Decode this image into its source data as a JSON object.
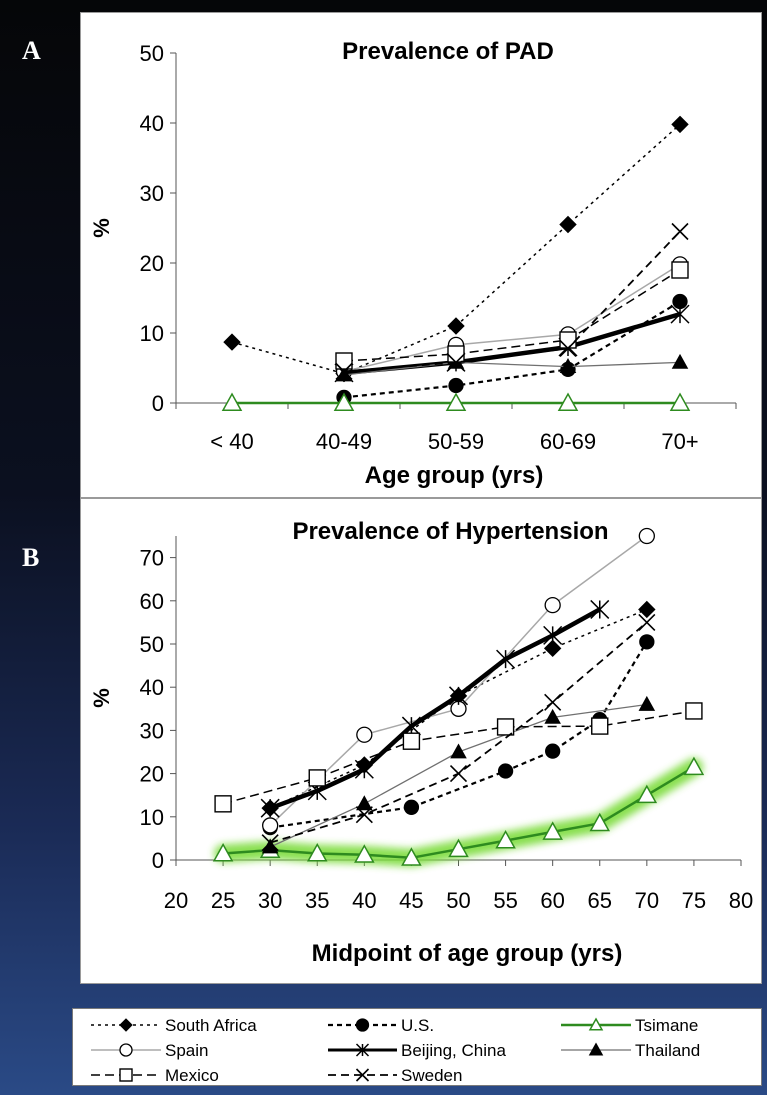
{
  "panel_labels": {
    "a": "A",
    "b": "B"
  },
  "chart_data": [
    {
      "type": "line",
      "title": "Prevalence of PAD",
      "xlabel": "Age group (yrs)",
      "ylabel": "%",
      "categories": [
        "< 40",
        "40-49",
        "50-59",
        "60-69",
        "70+"
      ],
      "ylim": [
        0,
        50
      ],
      "yticks": [
        "0",
        "10",
        "20",
        "30",
        "40",
        "50"
      ],
      "series": [
        {
          "name": "South Africa",
          "values": [
            8.7,
            4.2,
            11,
            25.5,
            39.8
          ]
        },
        {
          "name": "U.S.",
          "values": [
            null,
            0.8,
            2.5,
            4.8,
            14.5
          ]
        },
        {
          "name": "Tsimane",
          "values": [
            0,
            0,
            0,
            0,
            0
          ]
        },
        {
          "name": "Spain",
          "values": [
            null,
            4.5,
            8.3,
            9.8,
            19.8
          ]
        },
        {
          "name": "Beijing, China",
          "values": [
            null,
            4.3,
            5.8,
            8.0,
            12.7
          ]
        },
        {
          "name": "Thailand",
          "values": [
            null,
            4.0,
            5.8,
            5.2,
            5.8
          ]
        },
        {
          "name": "Mexico",
          "values": [
            null,
            6.0,
            7.0,
            9.0,
            19.0
          ]
        },
        {
          "name": "Sweden",
          "values": [
            null,
            4.5,
            5.8,
            7.8,
            24.5
          ]
        }
      ],
      "grid": false
    },
    {
      "type": "line",
      "title": "Prevalence of Hypertension",
      "xlabel": "Midpoint of age group (yrs)",
      "ylabel": "%",
      "xlim": [
        20,
        80
      ],
      "ylim": [
        0,
        75
      ],
      "xticks": [
        "20",
        "25",
        "30",
        "35",
        "40",
        "45",
        "50",
        "55",
        "60",
        "65",
        "70",
        "75",
        "80"
      ],
      "yticks": [
        "0",
        "10",
        "20",
        "30",
        "40",
        "50",
        "60",
        "70"
      ],
      "series": [
        {
          "name": "South Africa",
          "x": [
            30,
            40,
            50,
            60,
            70
          ],
          "y": [
            12,
            22,
            38,
            49,
            58
          ]
        },
        {
          "name": "U.S.",
          "x": [
            30,
            45,
            55,
            60,
            65,
            70
          ],
          "y": [
            7.5,
            12.2,
            20.6,
            25.2,
            32.5,
            50.5
          ]
        },
        {
          "name": "Tsimane",
          "x": [
            25,
            30,
            35,
            40,
            45,
            50,
            55,
            60,
            65,
            70,
            75
          ],
          "y": [
            1.5,
            2.3,
            1.5,
            1.2,
            0.5,
            2.5,
            4.5,
            6.5,
            8.5,
            15,
            21.5
          ]
        },
        {
          "name": "Spain",
          "x": [
            30,
            40,
            50,
            60,
            70
          ],
          "y": [
            8,
            29,
            35,
            59,
            75
          ]
        },
        {
          "name": "Beijing, China",
          "x": [
            30,
            35,
            40,
            45,
            50,
            55,
            60,
            65
          ],
          "y": [
            12,
            16,
            21,
            31,
            38,
            46.5,
            52,
            58
          ]
        },
        {
          "name": "Thailand",
          "x": [
            30,
            40,
            50,
            60,
            70
          ],
          "y": [
            3,
            13,
            25,
            33,
            36
          ]
        },
        {
          "name": "Mexico",
          "x": [
            25,
            35,
            45,
            55,
            65,
            75
          ],
          "y": [
            13,
            19,
            27.5,
            30.8,
            31,
            34.5
          ]
        },
        {
          "name": "Sweden",
          "x": [
            30,
            40,
            50,
            60,
            70
          ],
          "y": [
            4,
            10.5,
            20,
            36.5,
            55
          ]
        }
      ],
      "grid": false
    }
  ],
  "legend": {
    "entries": [
      {
        "label": "South Africa",
        "marker": "diamond-filled",
        "line": "dotted-fine"
      },
      {
        "label": "U.S.",
        "marker": "circle-filled",
        "line": "dotted"
      },
      {
        "label": "Tsimane",
        "marker": "triangle-open",
        "line": "solid"
      },
      {
        "label": "Spain",
        "marker": "circle-open",
        "line": "solid-light"
      },
      {
        "label": "Beijing, China",
        "marker": "asterisk",
        "line": "solid-thick"
      },
      {
        "label": "Thailand",
        "marker": "circle-filled",
        "line": "solid-thin"
      },
      {
        "label": "Mexico",
        "marker": "square-open",
        "line": "dashed"
      },
      {
        "label": "Sweden",
        "marker": "x",
        "line": "solid-thin"
      }
    ]
  },
  "styles": {
    "highlight_color": "#7ddc3c",
    "tsimane_color": "#2e8b1f",
    "thailand_color": "#707070",
    "spain_color": "#a8a8a8"
  }
}
